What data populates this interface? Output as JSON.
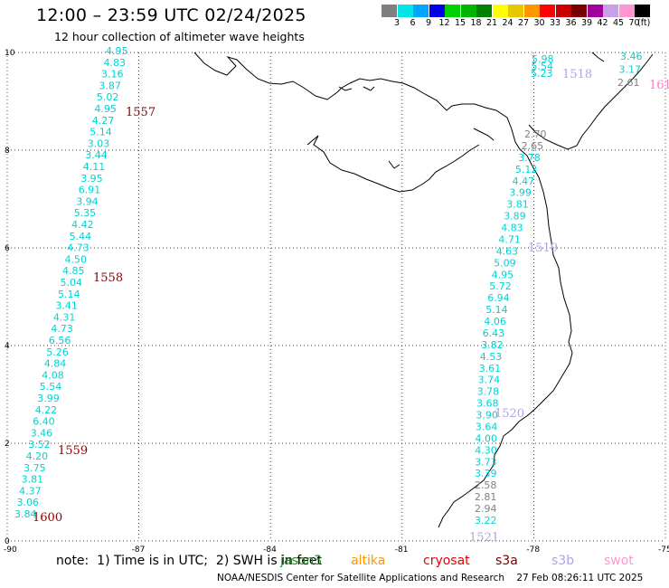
{
  "title": "12:00 – 23:59 UTC 02/24/2025",
  "subtitle": "12 hour collection of altimeter wave heights",
  "color_scale": {
    "unit": "(ft)",
    "bins": [
      {
        "label": "3",
        "color": "#7f7f7f"
      },
      {
        "label": "6",
        "color": "#00e5e5"
      },
      {
        "label": "9",
        "color": "#00a5ff"
      },
      {
        "label": "12",
        "color": "#0000e6"
      },
      {
        "label": "15",
        "color": "#00d200"
      },
      {
        "label": "18",
        "color": "#00b400"
      },
      {
        "label": "21",
        "color": "#008200"
      },
      {
        "label": "24",
        "color": "#ffff00"
      },
      {
        "label": "27",
        "color": "#e6c800"
      },
      {
        "label": "30",
        "color": "#ff9600"
      },
      {
        "label": "33",
        "color": "#ff0000"
      },
      {
        "label": "36",
        "color": "#c80000"
      },
      {
        "label": "39",
        "color": "#780000"
      },
      {
        "label": "42",
        "color": "#a0009b"
      },
      {
        "label": "45",
        "color": "#c8a0e6"
      },
      {
        "label": "70",
        "color": "#ff96d2"
      },
      {
        "label": "",
        "color": "#000000"
      }
    ]
  },
  "axes": {
    "x_ticks": [
      "-90",
      "-87",
      "-84",
      "-81",
      "-78",
      "-75"
    ],
    "y_ticks": [
      "0",
      "2",
      "4",
      "6",
      "8",
      "10"
    ],
    "grid": "dotted",
    "xlim": [
      -90,
      -75
    ],
    "ylim": [
      0,
      10
    ]
  },
  "tracks": [
    {
      "color": "#00d2d2",
      "points": [
        {
          "v": "4.95"
        },
        {
          "v": "4.83"
        },
        {
          "v": "3.16"
        },
        {
          "v": "3.87"
        },
        {
          "v": "5.02"
        },
        {
          "v": "4.95"
        },
        {
          "v": "4.27"
        },
        {
          "v": "5.14"
        },
        {
          "v": "3.03"
        },
        {
          "v": "3.44"
        },
        {
          "v": "4.11"
        },
        {
          "v": "3.95"
        },
        {
          "v": "6.91"
        },
        {
          "v": "3.94"
        },
        {
          "v": "5.35"
        },
        {
          "v": "4.42"
        },
        {
          "v": "5.44"
        },
        {
          "v": "4.73"
        },
        {
          "v": "4.50"
        },
        {
          "v": "4.85"
        },
        {
          "v": "5.04"
        },
        {
          "v": "5.14"
        },
        {
          "v": "3.41"
        },
        {
          "v": "4.31"
        },
        {
          "v": "4.73"
        },
        {
          "v": "6.56"
        },
        {
          "v": "5.26"
        },
        {
          "v": "4.84"
        },
        {
          "v": "4.08"
        },
        {
          "v": "5.54"
        },
        {
          "v": "3.99"
        },
        {
          "v": "4.22"
        },
        {
          "v": "6.40"
        },
        {
          "v": "3.46"
        },
        {
          "v": "3.52"
        },
        {
          "v": "4.20"
        },
        {
          "v": "3.75"
        },
        {
          "v": "3.81"
        },
        {
          "v": "4.37"
        },
        {
          "v": "3.06"
        },
        {
          "v": "3.84"
        }
      ]
    },
    {
      "color": "#00d2d2",
      "points": [
        {
          "v": "5.98"
        },
        {
          "v": "5.54"
        },
        {
          "v": "5.23"
        }
      ]
    },
    {
      "color": "#00d2d2",
      "points": [
        {
          "v": "3.46"
        },
        {
          "v": "3.17"
        },
        {
          "v": "2.61"
        }
      ]
    },
    {
      "color": "#00d2d2",
      "points": [
        {
          "v": "2.70"
        },
        {
          "v": "2.65"
        },
        {
          "v": "3.78"
        },
        {
          "v": "5.12"
        },
        {
          "v": "4.47"
        },
        {
          "v": "3.99"
        },
        {
          "v": "3.81"
        },
        {
          "v": "3.89"
        },
        {
          "v": "4.83"
        },
        {
          "v": "4.71"
        },
        {
          "v": "4.63"
        },
        {
          "v": "5.09"
        },
        {
          "v": "4.95"
        },
        {
          "v": "5.72"
        },
        {
          "v": "6.94"
        },
        {
          "v": "5.14"
        },
        {
          "v": "4.06"
        },
        {
          "v": "6.43"
        },
        {
          "v": "3.82"
        },
        {
          "v": "4.53"
        },
        {
          "v": "3.61"
        },
        {
          "v": "3.74"
        },
        {
          "v": "3.78"
        },
        {
          "v": "3.68"
        },
        {
          "v": "3.90"
        },
        {
          "v": "3.64"
        },
        {
          "v": "4.00"
        },
        {
          "v": "4.30"
        },
        {
          "v": "3.73"
        },
        {
          "v": "3.39"
        },
        {
          "v": "2.58"
        },
        {
          "v": "2.81"
        },
        {
          "v": "2.94"
        },
        {
          "v": "3.22"
        }
      ]
    }
  ],
  "pass_labels": [
    {
      "text": "1557",
      "color": "#8b0000"
    },
    {
      "text": "1558",
      "color": "#8b0000"
    },
    {
      "text": "1559",
      "color": "#8b0000"
    },
    {
      "text": "1600",
      "color": "#8b0000"
    },
    {
      "text": "1518",
      "color": "#b4a0e6"
    },
    {
      "text": "1519",
      "color": "#b4a0e6"
    },
    {
      "text": "1520",
      "color": "#b4a0e6"
    },
    {
      "text": "1521",
      "color": "#b4a0e6"
    },
    {
      "text": "161",
      "color": "#ff78c8"
    }
  ],
  "note": "note:  1) Time is in UTC;  2) SWH is in feet",
  "satellites": [
    {
      "name": "jason3",
      "color": "#228b22"
    },
    {
      "name": "altika",
      "color": "#ff9600"
    },
    {
      "name": "cryosat",
      "color": "#e60000"
    },
    {
      "name": "s3a",
      "color": "#780000"
    },
    {
      "name": "s3b",
      "color": "#b4a0e6"
    },
    {
      "name": "swot",
      "color": "#ff96d2"
    }
  ],
  "credit": "NOAA/NESDIS Center for Satellite Applications and Research    27 Feb 08:26:11 UTC 2025"
}
